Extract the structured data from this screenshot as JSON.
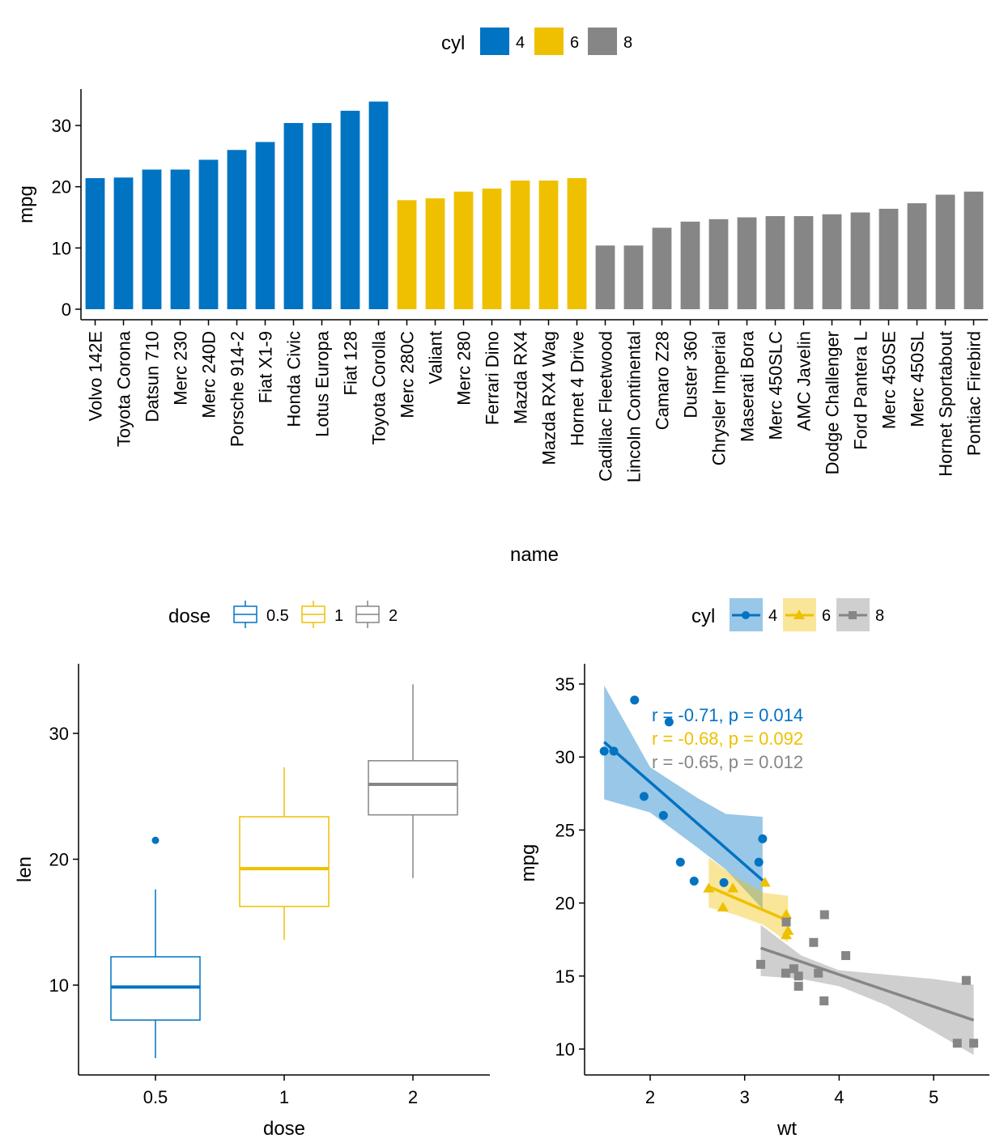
{
  "colors": {
    "c4": "#0073C2",
    "c6": "#EFC000",
    "c8": "#868686"
  },
  "chart_data": [
    {
      "type": "bar",
      "xlabel": "name",
      "ylabel": "mpg",
      "ylim": [
        0,
        35
      ],
      "yticks": [
        0,
        10,
        20,
        30
      ],
      "legend": {
        "title": "cyl",
        "position": "top",
        "entries": [
          "4",
          "6",
          "8"
        ]
      },
      "grid": false,
      "categories": [
        "Volvo 142E",
        "Toyota Corona",
        "Datsun 710",
        "Merc 230",
        "Merc 240D",
        "Porsche 914-2",
        "Fiat X1-9",
        "Honda Civic",
        "Lotus Europa",
        "Fiat 128",
        "Toyota Corolla",
        "Merc 280C",
        "Valiant",
        "Merc 280",
        "Ferrari Dino",
        "Mazda RX4",
        "Mazda RX4 Wag",
        "Hornet 4 Drive",
        "Cadillac Fleetwood",
        "Lincoln Continental",
        "Camaro Z28",
        "Duster 360",
        "Chrysler Imperial",
        "Maserati Bora",
        "Merc 450SLC",
        "AMC Javelin",
        "Dodge Challenger",
        "Ford Pantera L",
        "Merc 450SE",
        "Merc 450SL",
        "Hornet Sportabout",
        "Pontiac Firebird"
      ],
      "values": [
        21.4,
        21.5,
        22.8,
        22.8,
        24.4,
        26.0,
        27.3,
        30.4,
        30.4,
        32.4,
        33.9,
        17.8,
        18.1,
        19.2,
        19.7,
        21.0,
        21.0,
        21.4,
        10.4,
        10.4,
        13.3,
        14.3,
        14.7,
        15.0,
        15.2,
        15.2,
        15.5,
        15.8,
        16.4,
        17.3,
        18.7,
        19.2
      ],
      "groups": [
        "4",
        "4",
        "4",
        "4",
        "4",
        "4",
        "4",
        "4",
        "4",
        "4",
        "4",
        "6",
        "6",
        "6",
        "6",
        "6",
        "6",
        "6",
        "8",
        "8",
        "8",
        "8",
        "8",
        "8",
        "8",
        "8",
        "8",
        "8",
        "8",
        "8",
        "8",
        "8"
      ]
    },
    {
      "type": "box",
      "xlabel": "dose",
      "ylabel": "len",
      "ylim": [
        3,
        36
      ],
      "yticks": [
        10,
        20,
        30
      ],
      "categories": [
        "0.5",
        "1",
        "2"
      ],
      "legend": {
        "title": "dose",
        "position": "top",
        "entries": [
          "0.5",
          "1",
          "2"
        ]
      },
      "grid": false,
      "boxes": [
        {
          "group": "0.5",
          "min": 4.2,
          "q1": 7.225,
          "median": 9.85,
          "q3": 12.25,
          "max": 17.6,
          "outliers": [
            21.5
          ]
        },
        {
          "group": "1",
          "min": 13.6,
          "q1": 16.25,
          "median": 19.25,
          "q3": 23.375,
          "max": 27.3,
          "outliers": []
        },
        {
          "group": "2",
          "min": 18.5,
          "q1": 23.525,
          "median": 25.95,
          "q3": 27.825,
          "max": 33.9,
          "outliers": []
        }
      ]
    },
    {
      "type": "scatter",
      "xlabel": "wt",
      "ylabel": "mpg",
      "xlim": [
        1.3,
        5.6
      ],
      "ylim": [
        8.5,
        36.5
      ],
      "xticks": [
        2,
        3,
        4,
        5
      ],
      "yticks": [
        10,
        15,
        20,
        25,
        30,
        35
      ],
      "legend": {
        "title": "cyl",
        "position": "top",
        "entries": [
          "4",
          "6",
          "8"
        ]
      },
      "grid": false,
      "series": [
        {
          "name": "4",
          "marker": "circle",
          "points": [
            [
              2.32,
              22.8
            ],
            [
              3.19,
              24.4
            ],
            [
              3.15,
              22.8
            ],
            [
              2.2,
              32.4
            ],
            [
              1.615,
              30.4
            ],
            [
              1.835,
              33.9
            ],
            [
              2.465,
              21.5
            ],
            [
              1.935,
              27.3
            ],
            [
              2.14,
              26.0
            ],
            [
              1.513,
              30.4
            ],
            [
              2.78,
              21.4
            ]
          ],
          "fit": {
            "slope": -5.647,
            "intercept": 39.571
          },
          "ci_band": [
            [
              1.513,
              27.1,
              34.9
            ],
            [
              2.0,
              26.2,
              29.3
            ],
            [
              2.5,
              23.8,
              27.2
            ],
            [
              2.8,
              22.3,
              26.1
            ],
            [
              3.19,
              19.6,
              25.9
            ]
          ],
          "annotation": "r = -0.71, p = 0.014"
        },
        {
          "name": "6",
          "marker": "triangle",
          "points": [
            [
              2.62,
              21.0
            ],
            [
              2.875,
              21.0
            ],
            [
              3.215,
              21.4
            ],
            [
              3.46,
              18.1
            ],
            [
              3.44,
              19.2
            ],
            [
              3.44,
              17.8
            ],
            [
              2.77,
              19.7
            ]
          ],
          "fit": {
            "slope": -2.78,
            "intercept": 28.409
          },
          "ci_band": [
            [
              2.62,
              19.7,
              23.1
            ],
            [
              2.9,
              19.2,
              21.8
            ],
            [
              3.2,
              18.5,
              20.7
            ],
            [
              3.46,
              17.3,
              20.5
            ]
          ],
          "annotation": "r = -0.68, p = 0.092"
        },
        {
          "name": "8",
          "marker": "square",
          "points": [
            [
              3.44,
              18.7
            ],
            [
              3.57,
              14.3
            ],
            [
              4.07,
              16.4
            ],
            [
              3.73,
              17.3
            ],
            [
              3.78,
              15.2
            ],
            [
              5.25,
              10.4
            ],
            [
              5.424,
              10.4
            ],
            [
              5.345,
              14.7
            ],
            [
              3.52,
              15.5
            ],
            [
              3.435,
              15.2
            ],
            [
              3.84,
              13.3
            ],
            [
              3.845,
              19.2
            ],
            [
              3.17,
              15.8
            ],
            [
              3.57,
              15.0
            ]
          ],
          "fit": {
            "slope": -2.192,
            "intercept": 23.868
          },
          "ci_band": [
            [
              3.17,
              15.0,
              18.5
            ],
            [
              3.6,
              14.8,
              16.4
            ],
            [
              4.0,
              14.3,
              15.4
            ],
            [
              4.5,
              13.0,
              15.1
            ],
            [
              5.0,
              11.2,
              14.8
            ],
            [
              5.424,
              9.6,
              14.4
            ]
          ],
          "annotation": "r = -0.65, p = 0.012"
        }
      ]
    }
  ]
}
